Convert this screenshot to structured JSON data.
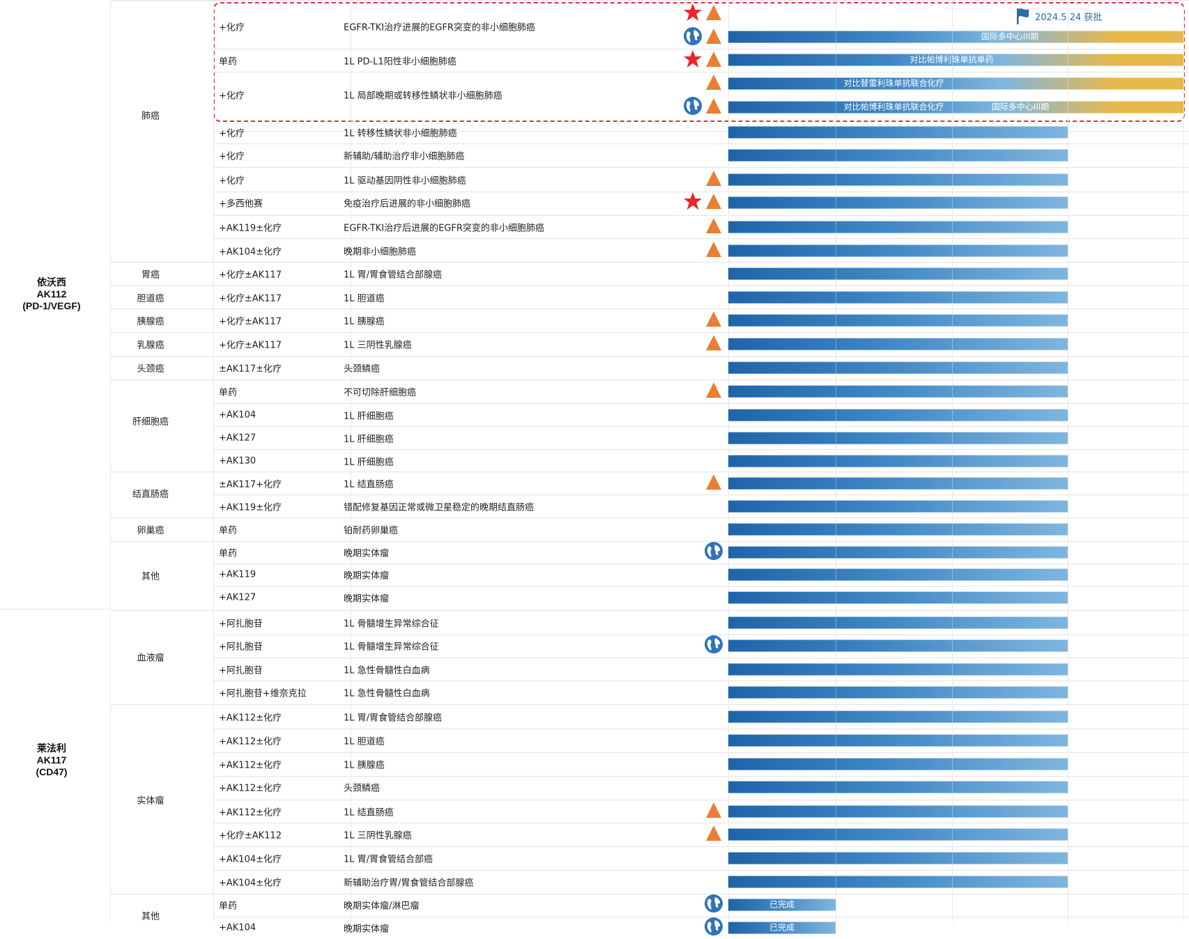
{
  "colors": {
    "bar_blue_dark": "#1f64a8",
    "bar_blue_light": "#7fb6df",
    "bar_gold": "#e8b84a",
    "star_red": "#e8262b",
    "triangle_orange": "#e87f34",
    "globe_blue": "#2f74b8",
    "highlight_dash": "#e0303a",
    "approval_flag": "#2d6aa8"
  },
  "approval": {
    "label": "2024.5.24 获批"
  },
  "drugs": [
    {
      "name_cn": "依沃西",
      "code": "AK112",
      "target": "(PD-1/VEGF)"
    },
    {
      "name_cn": "莱法利",
      "code": "AK117",
      "target": "(CD47)"
    }
  ],
  "indications": [
    "肺癌",
    "胃癌",
    "胆道癌",
    "胰腺癌",
    "乳腺癌",
    "头颈癌",
    "肝细胞癌",
    "结直肠癌",
    "卵巢癌",
    "其他",
    "血液瘤",
    "实体瘤",
    "其他"
  ],
  "rows": [
    {
      "combo": "+化疗",
      "desc": "EGFR-TKI治疗进展的EGFR突变的非小细胞肺癌",
      "stage": 4,
      "icons": [
        "star",
        "triangle",
        "globe",
        "triangle"
      ],
      "labels": [
        "",
        "",
        "国际多中心III期"
      ]
    },
    {
      "combo": "单药",
      "desc": "1L PD-L1阳性非小细胞肺癌",
      "stage": 4,
      "icons": [
        "star",
        "triangle"
      ],
      "labels": [
        "",
        "对比帕博利珠单抗单药"
      ]
    },
    {
      "combo": "+化疗",
      "desc": "1L 局部晚期或转移性鳞状非小细胞肺癌",
      "stage": 4,
      "icons": [
        "triangle",
        "globe",
        "triangle"
      ],
      "labels": [
        "",
        "对比替雷利珠单抗联合化疗",
        "",
        "对比帕博利珠单抗联合化疗",
        "国际多中心III期"
      ]
    },
    {
      "combo": "+化疗",
      "desc": "1L 转移性鳞状非小细胞肺癌",
      "stage": 3,
      "icons": []
    },
    {
      "combo": "+化疗",
      "desc": "新辅助/辅助治疗非小细胞肺癌",
      "stage": 3,
      "icons": []
    },
    {
      "combo": "+化疗",
      "desc": "1L 驱动基因阴性非小细胞肺癌",
      "stage": 3,
      "icons": [
        "triangle"
      ]
    },
    {
      "combo": "+多西他赛",
      "desc": "免疫治疗后进展的非小细胞肺癌",
      "stage": 3,
      "icons": [
        "star",
        "triangle"
      ]
    },
    {
      "combo": "+AK119±化疗",
      "desc": "EGFR-TKI治疗后进展的EGFR突变的非小细胞肺癌",
      "stage": 3,
      "icons": [
        "triangle"
      ]
    },
    {
      "combo": "+AK104±化疗",
      "desc": "晚期非小细胞肺癌",
      "stage": 3,
      "icons": [
        "triangle"
      ]
    },
    {
      "combo": "+化疗±AK117",
      "desc": "1L 胃/胃食管结合部腺癌",
      "stage": 3,
      "icons": []
    },
    {
      "combo": "+化疗±AK117",
      "desc": "1L 胆道癌",
      "stage": 3,
      "icons": []
    },
    {
      "combo": "+化疗±AK117",
      "desc": "1L 胰腺癌",
      "stage": 3,
      "icons": [
        "triangle"
      ]
    },
    {
      "combo": "+化疗±AK117",
      "desc": "1L 三阴性乳腺癌",
      "stage": 3,
      "icons": [
        "triangle"
      ]
    },
    {
      "combo": "±AK117±化疗",
      "desc": "头颈鳞癌",
      "stage": 3,
      "icons": []
    },
    {
      "combo": "单药",
      "desc": "不可切除肝细胞癌",
      "stage": 3,
      "icons": [
        "triangle"
      ]
    },
    {
      "combo": "+AK104",
      "desc": "1L 肝细胞癌",
      "stage": 3,
      "icons": []
    },
    {
      "combo": "+AK127",
      "desc": "1L 肝细胞癌",
      "stage": 3,
      "icons": []
    },
    {
      "combo": "+AK130",
      "desc": "1L 肝细胞癌",
      "stage": 3,
      "icons": []
    },
    {
      "combo": "±AK117+化疗",
      "desc": "1L 结直肠癌",
      "stage": 3,
      "icons": [
        "triangle"
      ]
    },
    {
      "combo": "+AK119±化疗",
      "desc": "错配修复基因正常或微卫星稳定的晚期结直肠癌",
      "stage": 3,
      "icons": []
    },
    {
      "combo": "单药",
      "desc": "铂耐药卵巢癌",
      "stage": 3,
      "icons": []
    },
    {
      "combo": "单药",
      "desc": "晚期实体瘤",
      "stage": 3,
      "icons": [
        "globe"
      ]
    },
    {
      "combo": "+AK119",
      "desc": "晚期实体瘤",
      "stage": 3,
      "icons": []
    },
    {
      "combo": "+AK127",
      "desc": "晚期实体瘤",
      "stage": 3,
      "icons": []
    },
    {
      "combo": "+阿扎胞苷",
      "desc": "1L 骨髓增生异常综合征",
      "stage": 3,
      "icons": []
    },
    {
      "combo": "+阿扎胞苷",
      "desc": "1L 骨髓增生异常综合征",
      "stage": 3,
      "icons": [
        "globe"
      ]
    },
    {
      "combo": "+阿扎胞苷",
      "desc": "1L 急性骨髓性白血病",
      "stage": 3,
      "icons": []
    },
    {
      "combo": "+阿扎胞苷+维奈克拉",
      "desc": "1L 急性骨髓性白血病",
      "stage": 3,
      "icons": []
    },
    {
      "combo": "+AK112±化疗",
      "desc": "1L 胃/胃食管结合部腺癌",
      "stage": 3,
      "icons": []
    },
    {
      "combo": "+AK112±化疗",
      "desc": "1L 胆道癌",
      "stage": 3,
      "icons": []
    },
    {
      "combo": "+AK112±化疗",
      "desc": "1L 胰腺癌",
      "stage": 3,
      "icons": []
    },
    {
      "combo": "+AK112±化疗",
      "desc": "头颈鳞癌",
      "stage": 3,
      "icons": []
    },
    {
      "combo": "+AK112±化疗",
      "desc": "1L 结直肠癌",
      "stage": 3,
      "icons": [
        "triangle"
      ]
    },
    {
      "combo": "+化疗±AK112",
      "desc": "1L 三阴性乳腺癌",
      "stage": 3,
      "icons": [
        "triangle"
      ]
    },
    {
      "combo": "+AK104±化疗",
      "desc": "1L 胃/胃食管结合部癌",
      "stage": 3,
      "icons": []
    },
    {
      "combo": "+AK104±化疗",
      "desc": "新辅助治疗胃/胃食管结合部腺癌",
      "stage": 3,
      "icons": []
    },
    {
      "combo": "单药",
      "desc": "晚期实体瘤/淋巴瘤",
      "stage": 1,
      "icons": [
        "globe"
      ],
      "labels": [
        "已完成"
      ]
    },
    {
      "combo": "+AK104",
      "desc": "晚期实体瘤",
      "stage": 1,
      "icons": [
        "globe"
      ],
      "labels": [
        "已完成"
      ]
    }
  ]
}
